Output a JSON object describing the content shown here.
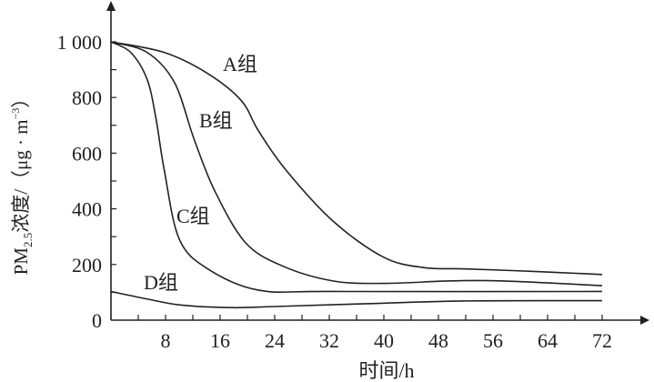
{
  "chart_data": {
    "type": "line",
    "title": "",
    "xlabel": "时间/h",
    "ylabel_main": "PM",
    "ylabel_sub": "2.5",
    "ylabel_rest": "浓度/（μg · m",
    "ylabel_sup": "−3",
    "ylabel_end": "）",
    "xlim": [
      0,
      72
    ],
    "ylim": [
      0,
      1000
    ],
    "xticks": [
      8,
      16,
      24,
      32,
      40,
      48,
      56,
      64,
      72
    ],
    "yticks": [
      0,
      200,
      400,
      600,
      800,
      1000
    ],
    "ytick_labels": [
      "0",
      "200",
      "400",
      "600",
      "800",
      "1 000"
    ],
    "grid": false,
    "series": [
      {
        "name": "A组",
        "x": [
          0,
          7.8,
          14.2,
          19.1,
          21.6,
          25.6,
          32.5,
          39.9,
          45.8,
          52.2,
          62,
          72
        ],
        "y": [
          1000,
          962,
          886,
          789,
          681,
          541,
          357,
          227,
          189,
          184,
          175,
          164
        ]
      },
      {
        "name": "B组",
        "x": [
          0,
          5.3,
          9.3,
          12.2,
          15.2,
          19.7,
          25.1,
          32.5,
          39.9,
          49.8,
          57.2,
          72
        ],
        "y": [
          1000,
          962,
          854,
          649,
          465,
          279,
          195,
          141,
          132,
          141,
          141,
          124
        ]
      },
      {
        "name": "C组",
        "x": [
          0,
          2.9,
          5.3,
          6.6,
          7.8,
          10,
          14.2,
          21.6,
          32.5,
          72
        ],
        "y": [
          1000,
          962,
          865,
          724,
          541,
          292,
          184,
          108,
          103,
          103
        ]
      },
      {
        "name": "D组",
        "x": [
          0,
          5.3,
          10.3,
          17.7,
          24.1,
          37.4,
          52.2,
          72
        ],
        "y": [
          103,
          76,
          54,
          45,
          49,
          59,
          69,
          70
        ]
      }
    ]
  }
}
